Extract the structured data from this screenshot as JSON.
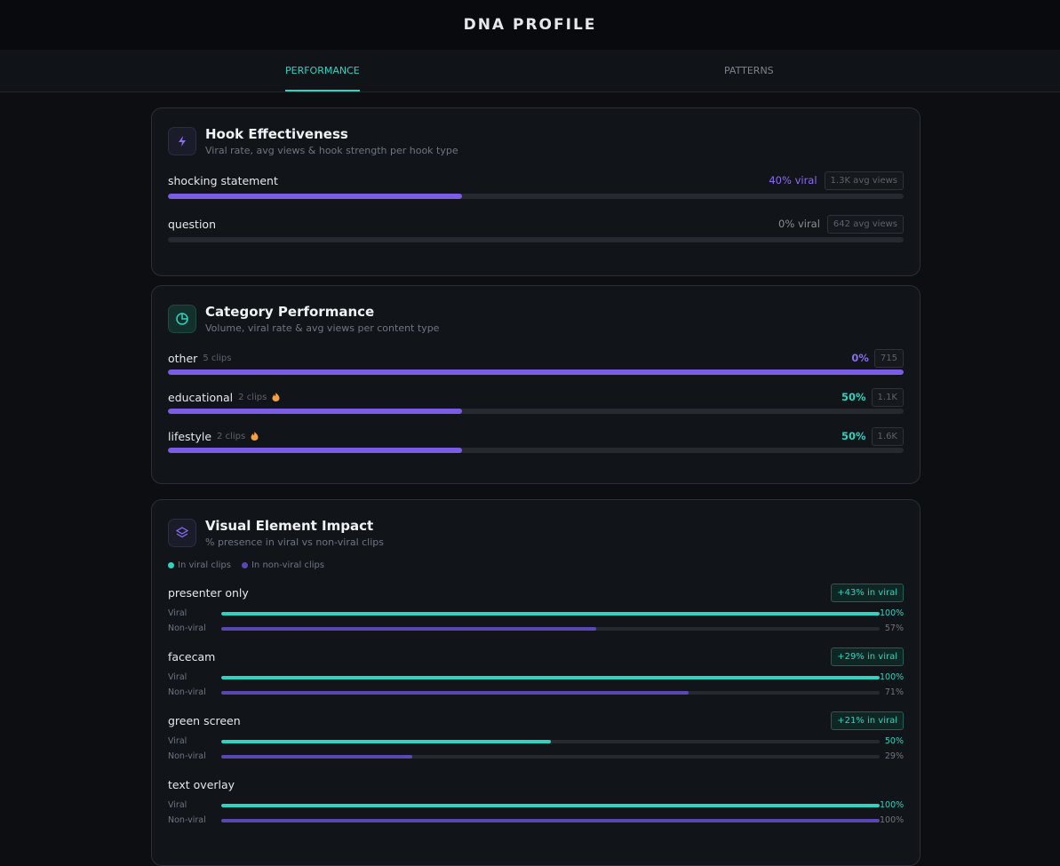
{
  "header": {
    "title": "DNA PROFILE"
  },
  "tabs": {
    "items": [
      "PERFORMANCE",
      "PATTERNS"
    ],
    "active": 0
  },
  "hook": {
    "title": "Hook Effectiveness",
    "subtitle": "Viral rate, avg views & hook strength per hook type",
    "rows": [
      {
        "name": "shocking statement",
        "viral_rate": 40,
        "viral_label": "40% viral",
        "avg_views": 1300,
        "avg_views_label": "1.3K avg views"
      },
      {
        "name": "question",
        "viral_rate": 0,
        "viral_label": "0% viral",
        "avg_views": 642,
        "avg_views_label": "642 avg views"
      }
    ]
  },
  "category": {
    "title": "Category Performance",
    "subtitle": "Volume, viral rate & avg views per content type",
    "rows": [
      {
        "name": "other",
        "clips": 5,
        "clips_label": "5 clips",
        "viral_rate": 0,
        "viral_label": "0%",
        "avg_views": 715,
        "hot": false
      },
      {
        "name": "educational",
        "clips": 2,
        "clips_label": "2 clips",
        "viral_rate": 50,
        "viral_label": "50%",
        "avg_views": {
          "value": 1100,
          "label": "1.1K"
        },
        "hot": true
      },
      {
        "name": "lifestyle",
        "clips": 2,
        "clips_label": "2 clips",
        "viral_rate": 50,
        "viral_label": "50%",
        "avg_views": {
          "value": 1600,
          "label": "1.6K"
        },
        "hot": true
      }
    ]
  },
  "visual": {
    "title": "Visual Element Impact",
    "subtitle": "% presence in viral vs non-viral clips",
    "legend": [
      "In viral clips",
      "In non-viral clips"
    ],
    "row_labels": [
      "Viral",
      "Non-viral"
    ],
    "rows": [
      {
        "name": "presenter only",
        "delta": 43,
        "delta_label": "+43% in viral",
        "viral": 100,
        "viral_label": "100%",
        "non_viral": 57,
        "non_viral_label": "57%"
      },
      {
        "name": "facecam",
        "delta": 29,
        "delta_label": "+29% in viral",
        "viral": 100,
        "viral_label": "100%",
        "non_viral": 71,
        "non_viral_label": "71%"
      },
      {
        "name": "green screen",
        "delta": 21,
        "delta_label": "+21% in viral",
        "viral": 50,
        "viral_label": "50%",
        "non_viral": 29,
        "non_viral_label": "29%"
      },
      {
        "name": "text overlay",
        "viral": 100,
        "viral_label": "100%",
        "non_viral": 100,
        "non_viral_label": "100%"
      }
    ]
  }
}
